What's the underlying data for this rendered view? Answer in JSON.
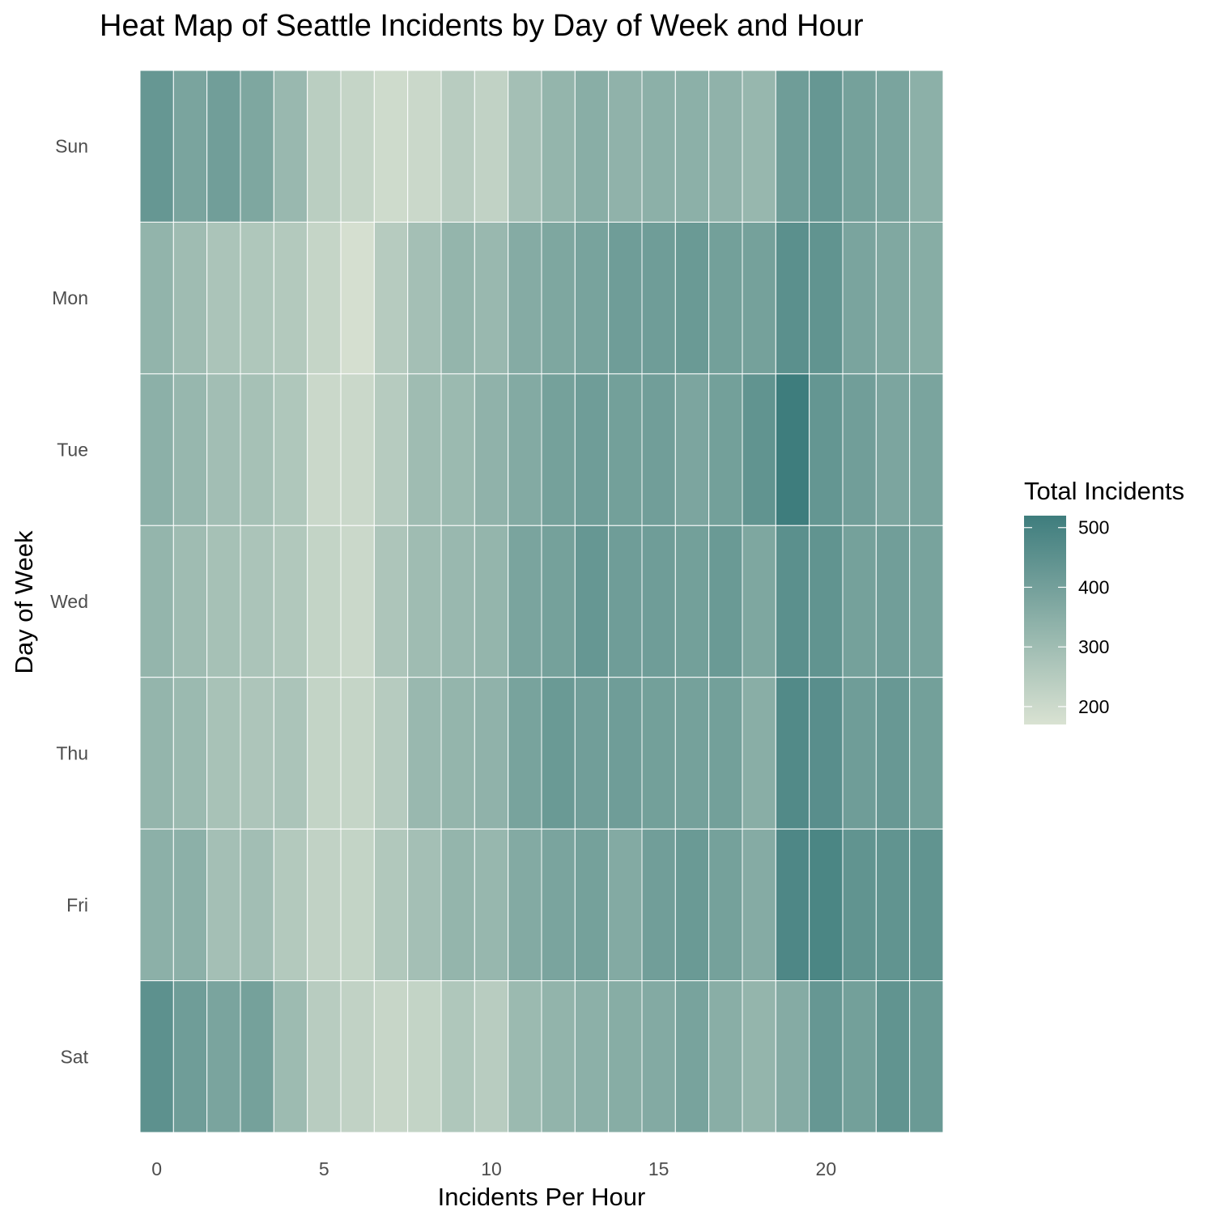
{
  "chart_data": {
    "type": "heatmap",
    "title": "Heat Map of Seattle Incidents by Day of Week and Hour",
    "xlabel": "Incidents Per Hour",
    "ylabel": "Day of Week",
    "x": [
      0,
      1,
      2,
      3,
      4,
      5,
      6,
      7,
      8,
      9,
      10,
      11,
      12,
      13,
      14,
      15,
      16,
      17,
      18,
      19,
      20,
      21,
      22,
      23
    ],
    "x_ticks": [
      0,
      5,
      10,
      15,
      20
    ],
    "y_categories": [
      "Sun",
      "Mon",
      "Tue",
      "Wed",
      "Thu",
      "Fri",
      "Sat"
    ],
    "values": [
      [
        430,
        385,
        405,
        375,
        315,
        240,
        215,
        195,
        205,
        245,
        225,
        290,
        325,
        350,
        335,
        345,
        345,
        335,
        320,
        410,
        430,
        395,
        385,
        345
      ],
      [
        330,
        300,
        275,
        265,
        255,
        215,
        180,
        250,
        290,
        325,
        315,
        360,
        375,
        390,
        410,
        410,
        420,
        400,
        395,
        455,
        440,
        385,
        370,
        355
      ],
      [
        345,
        320,
        295,
        285,
        265,
        205,
        205,
        250,
        300,
        310,
        335,
        365,
        395,
        410,
        400,
        405,
        380,
        400,
        440,
        520,
        435,
        405,
        380,
        385
      ],
      [
        325,
        300,
        285,
        275,
        260,
        220,
        205,
        270,
        300,
        315,
        325,
        385,
        395,
        430,
        410,
        410,
        400,
        420,
        375,
        455,
        440,
        395,
        405,
        390
      ],
      [
        325,
        310,
        280,
        270,
        275,
        220,
        215,
        250,
        315,
        325,
        335,
        390,
        420,
        405,
        410,
        400,
        395,
        400,
        350,
        475,
        460,
        410,
        425,
        400
      ],
      [
        345,
        345,
        290,
        295,
        255,
        225,
        220,
        260,
        290,
        325,
        320,
        365,
        385,
        395,
        365,
        405,
        420,
        395,
        360,
        485,
        490,
        440,
        440,
        440
      ],
      [
        450,
        410,
        385,
        395,
        305,
        245,
        225,
        210,
        220,
        265,
        245,
        310,
        330,
        345,
        355,
        365,
        390,
        350,
        325,
        360,
        430,
        400,
        440,
        420
      ]
    ],
    "legend": {
      "title": "Total Incidents",
      "ticks": [
        200,
        300,
        400,
        500
      ],
      "min": 170,
      "max": 520,
      "low_color": "#d9e2d2",
      "high_color": "#3e7d7d",
      "position": "right"
    },
    "grid": false
  }
}
